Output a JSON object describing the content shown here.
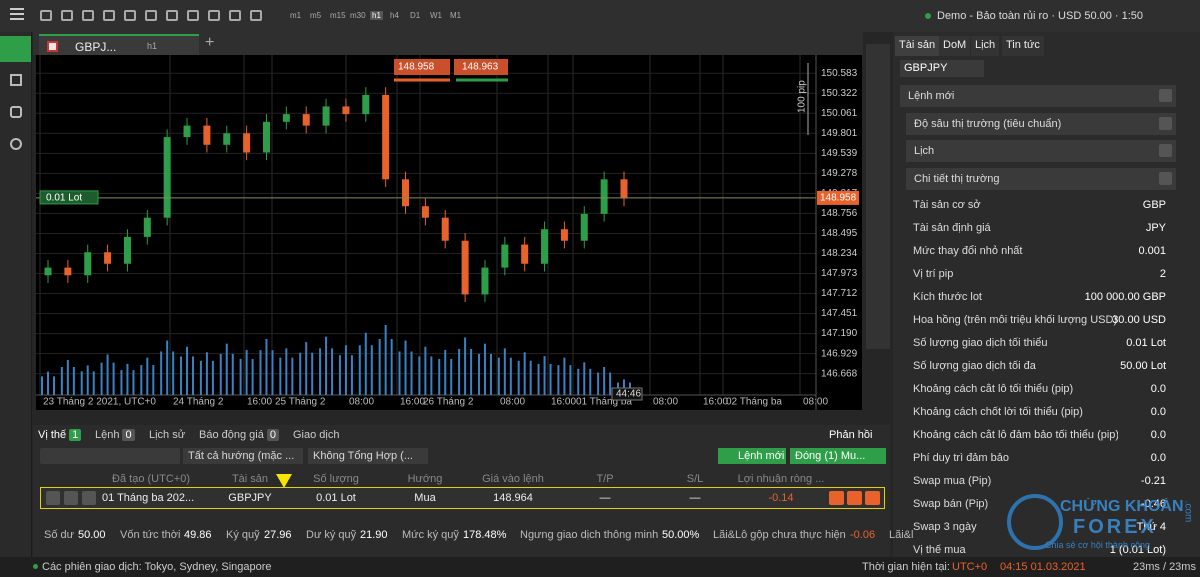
{
  "top_bar": {
    "timeframes": [
      "m1",
      "m5",
      "m15",
      "m30",
      "h1",
      "h4",
      "D1",
      "W1",
      "M1"
    ],
    "account": "Demo - Bảo toàn rủi ro · USD 50.00 · 1:50"
  },
  "chart_tab": {
    "symbol": "GBPJ...",
    "timeframe": "h1"
  },
  "chart": {
    "type": "candlestick",
    "sell_price": 148.958,
    "buy_price": 148.963,
    "range_label": "100 pip",
    "position_label": "0.01 Lot",
    "current_price": 148.958,
    "countdown": "44:46",
    "ylim": [
      146.39,
      150.82
    ],
    "yticks": [
      150.583,
      150.322,
      150.061,
      149.801,
      149.539,
      149.278,
      149.017,
      148.756,
      148.495,
      148.234,
      147.973,
      147.712,
      147.451,
      {
        "value": 147.19,
        "label": "147.190"
      },
      146.929,
      146.668
    ],
    "xticks": [
      "23 Tháng 2 2021, UTC+0",
      "24 Tháng 2",
      "16:00",
      "25 Tháng 2",
      "08:00",
      "16:00",
      "26 Tháng 2",
      "08:00",
      "16:00",
      "01 Tháng ba",
      "08:00",
      "16:00",
      "02 Tháng ba",
      "08:00"
    ],
    "open": [
      147.95,
      148.05,
      147.95,
      148.25,
      148.1,
      148.45,
      148.7,
      149.75,
      149.9,
      149.65,
      149.8,
      149.55,
      149.95,
      150.05,
      149.9,
      150.15,
      150.05,
      150.3,
      149.2,
      148.85,
      148.7,
      148.4,
      147.7,
      148.05,
      148.35,
      148.1,
      148.55,
      148.4,
      148.75,
      149.2
    ],
    "high": [
      148.15,
      148.15,
      148.35,
      148.35,
      148.55,
      148.8,
      149.85,
      150.0,
      150.0,
      149.9,
      149.9,
      150.05,
      150.15,
      150.15,
      150.25,
      150.25,
      150.4,
      150.4,
      149.3,
      148.95,
      148.8,
      148.5,
      148.15,
      148.45,
      148.45,
      148.65,
      148.65,
      148.85,
      149.3,
      149.3
    ],
    "low": [
      147.85,
      147.85,
      147.85,
      148.0,
      148.0,
      148.35,
      148.6,
      149.65,
      149.55,
      149.55,
      149.45,
      149.45,
      149.85,
      149.8,
      149.8,
      149.95,
      149.95,
      149.1,
      148.75,
      148.6,
      148.3,
      147.6,
      147.6,
      147.95,
      148.0,
      148.0,
      148.3,
      148.3,
      148.65,
      148.85
    ],
    "close": [
      148.05,
      147.95,
      148.25,
      148.1,
      148.45,
      148.7,
      149.75,
      149.9,
      149.65,
      149.8,
      149.55,
      149.95,
      150.05,
      149.9,
      150.15,
      150.05,
      150.3,
      149.2,
      148.85,
      148.7,
      148.4,
      147.7,
      148.05,
      148.35,
      148.1,
      148.55,
      148.4,
      148.75,
      149.2,
      148.95
    ],
    "volumes": [
      30,
      45,
      38,
      52,
      40,
      48,
      70,
      62,
      55,
      66,
      58,
      72,
      60,
      68,
      75,
      64,
      80,
      90,
      70,
      62,
      58,
      74,
      66,
      60,
      55,
      50,
      48,
      42,
      36,
      20
    ],
    "up_color": "#2e9e48",
    "down_color": "#e8622c",
    "volume_color": "#3b82c4"
  },
  "positions": {
    "tabs": [
      {
        "label": "Vị thế",
        "count": 1
      },
      {
        "label": "Lệnh",
        "count": 0
      },
      {
        "label": "Lịch sử"
      },
      {
        "label": "Báo động giá",
        "count": 0
      },
      {
        "label": "Giao dịch"
      }
    ],
    "feedback": "Phản hồi",
    "filters": [
      "Tất cả hướng (mặc ...",
      "Không Tổng Hợp (..."
    ],
    "new_order": "Lệnh mới",
    "close_all": "Đóng (1) Mu...",
    "columns": [
      "Đã tạo (UTC+0)",
      "Tài sản",
      "Số lượng",
      "Hướng",
      "Giá vào lệnh",
      "T/P",
      "S/L",
      "Lợi nhuận ròng ..."
    ],
    "rows": [
      [
        "01 Tháng ba 202...",
        "GBPJPY",
        "0.01 Lot",
        "Mua",
        "148.964",
        "—",
        "—",
        "-0.14"
      ]
    ]
  },
  "summary": [
    [
      "Số dư",
      "50.00"
    ],
    [
      "Vốn tức thời",
      "49.86"
    ],
    [
      "Ký quỹ",
      "27.96"
    ],
    [
      "Dư ký quỹ",
      "21.90"
    ],
    [
      "Mức ký quỹ",
      "178.48%"
    ],
    [
      "Ngưng giao dịch thông minh",
      "50.00%"
    ],
    [
      "Lãi&Lỗ gộp chưa thực hiện",
      "-0.06"
    ],
    [
      "Lãi&l",
      ""
    ]
  ],
  "status": {
    "sessions": "Các phiên giao dịch: Tokyo, Sydney, Singapore",
    "time_label": "Thời gian hiện tại:",
    "timezone": "UTC+0",
    "time": "04:15 01.03.2021",
    "latency": "23ms / 23ms"
  },
  "side_panel": {
    "tabs": [
      "Tài sản",
      "DoM",
      "Lịch",
      "Tin tức"
    ],
    "symbol": "GBPJPY",
    "sections": [
      "Lệnh mới",
      "Độ sâu thị trường (tiêu chuẩn)",
      "Lịch",
      "Chi tiết thị trường"
    ],
    "details": [
      [
        "Tài sản cơ sở",
        "GBP"
      ],
      [
        "Tài sản định giá",
        "JPY"
      ],
      [
        "Mức thay đổi nhỏ nhất",
        "0.001"
      ],
      [
        "Vị trí pip",
        "2"
      ],
      [
        "Kích thước lot",
        "100 000.00 GBP"
      ],
      [
        "Hoa hồng (trên mỗi triệu khối lượng USD)",
        "30.00 USD"
      ],
      [
        "Số lượng giao dịch tối thiểu",
        "0.01 Lot"
      ],
      [
        "Số lượng giao dịch tối đa",
        "50.00 Lot"
      ],
      [
        "Khoảng cách cắt lỗ tối thiểu (pip)",
        "0.0"
      ],
      [
        "Khoảng cách chốt lời tối thiểu (pip)",
        "0.0"
      ],
      [
        "Khoảng cách cắt lỗ đảm bảo tối thiểu (pip)",
        "0.0"
      ],
      [
        "Phí duy trì đảm bảo",
        "0.0"
      ],
      [
        "Swap mua (Pip)",
        "-0.21"
      ],
      [
        "Swap bán (Pip)",
        "-0.46"
      ],
      [
        "Swap 3 ngày",
        "Thứ 4"
      ],
      [
        "Vị thế mua",
        "1 (0.01 Lot)"
      ]
    ]
  },
  "watermark": {
    "brand": "CHỨNG KHOÁN",
    "name": "FOREX",
    "slogan": "Chia sẻ cơ hội thành công",
    "domain": ".com"
  }
}
